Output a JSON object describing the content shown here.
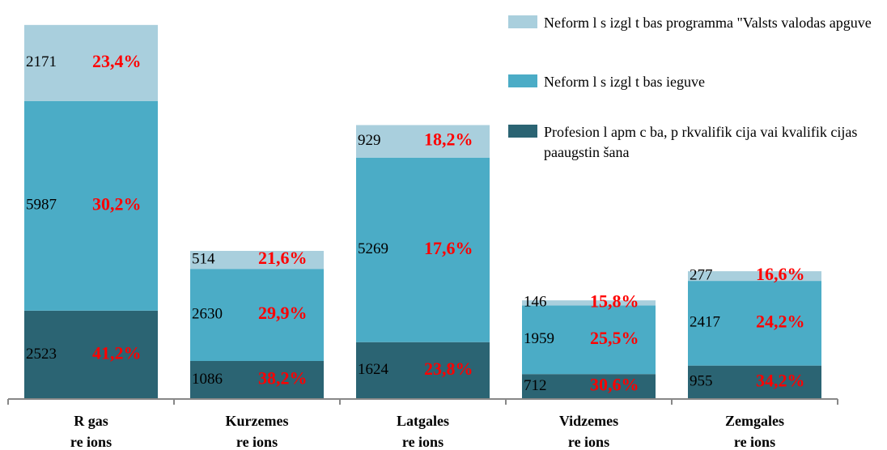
{
  "chart_data": {
    "type": "stacked_bar",
    "categories": [
      [
        "R gas",
        "re ions"
      ],
      [
        "Kurzemes",
        "re ions"
      ],
      [
        "Latgales",
        "re ions"
      ],
      [
        "Vidzemes",
        "re ions"
      ],
      [
        "Zemgales",
        "re ions"
      ]
    ],
    "series": [
      {
        "name": "Profesion l apm c ba, p rkvalifik cija vai kvalifik cijas paaugstin šana",
        "color": "#2b6473",
        "values": [
          2523,
          1086,
          1624,
          712,
          955
        ],
        "percent_labels": [
          "41,2%",
          "38,2%",
          "23,8%",
          "30,6%",
          "34,2%"
        ]
      },
      {
        "name": "Neform l s izgl t bas ieguve",
        "color": "#4bacc6",
        "values": [
          5987,
          2630,
          5269,
          1959,
          2417
        ],
        "percent_labels": [
          "30,2%",
          "29,9%",
          "17,6%",
          "25,5%",
          "24,2%"
        ]
      },
      {
        "name": "Neform l s izgl t bas programma \"Valsts valodas apguve",
        "color": "#a9cfdd",
        "values": [
          2171,
          514,
          929,
          146,
          277
        ],
        "percent_labels": [
          "23,4%",
          "21,6%",
          "18,2%",
          "15,8%",
          "16,6%"
        ]
      }
    ],
    "ylim": [
      0,
      10700
    ]
  }
}
